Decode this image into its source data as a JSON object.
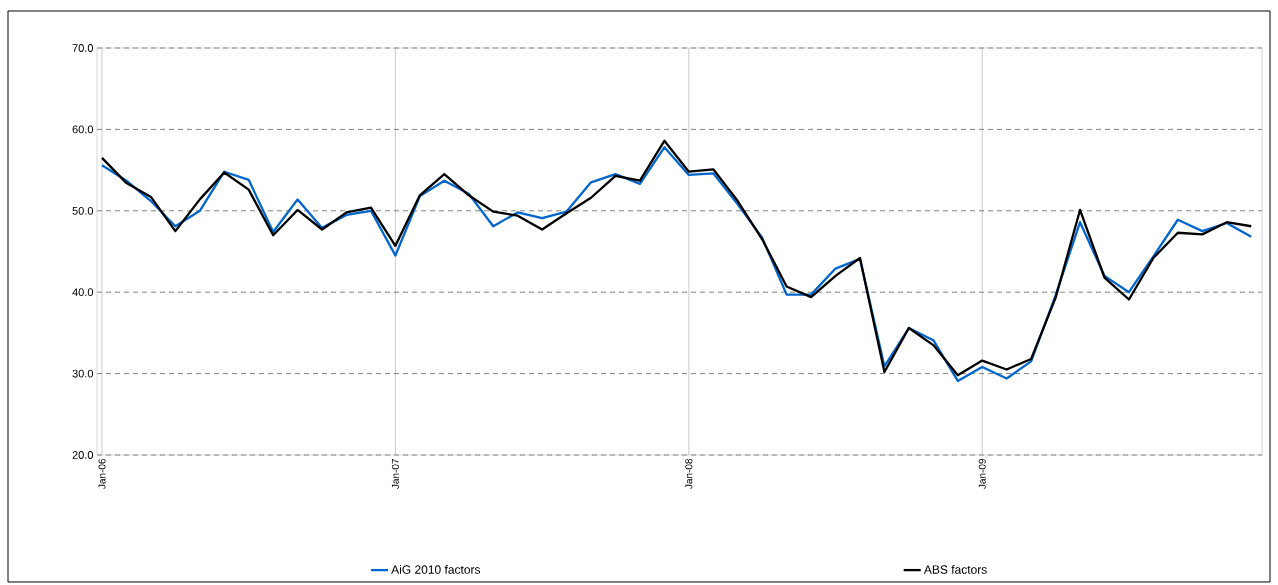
{
  "chart_data": {
    "type": "line",
    "categories": [
      "Jan-06",
      null,
      null,
      null,
      null,
      null,
      null,
      null,
      null,
      null,
      null,
      null,
      "Jan-07",
      null,
      null,
      null,
      null,
      null,
      null,
      null,
      null,
      null,
      null,
      null,
      "Jan-08",
      null,
      null,
      null,
      null,
      null,
      null,
      null,
      null,
      null,
      null,
      null,
      "Jan-09",
      null,
      null,
      null,
      null,
      null,
      null,
      null,
      null,
      null,
      null,
      null
    ],
    "series": [
      {
        "name": "AiG 2010 factors",
        "color": "#0066cc",
        "values": [
          55.6,
          53.7,
          51.2,
          48.1,
          50.0,
          54.8,
          53.8,
          47.4,
          51.4,
          47.9,
          49.5,
          50.0,
          44.5,
          51.8,
          53.7,
          52.1,
          48.1,
          49.8,
          49.1,
          49.9,
          53.5,
          54.5,
          53.3,
          57.8,
          54.4,
          54.6,
          50.8,
          46.7,
          39.7,
          39.7,
          42.9,
          44.1,
          30.9,
          35.6,
          34.1,
          29.1,
          30.8,
          29.4,
          31.5,
          39.6,
          48.6,
          42.0,
          40.0,
          44.4,
          48.9,
          47.5,
          48.5,
          46.8
        ]
      },
      {
        "name": "ABS factors",
        "color": "#000000",
        "values": [
          56.5,
          53.4,
          51.7,
          47.5,
          51.4,
          54.7,
          52.6,
          47.0,
          50.1,
          47.7,
          49.8,
          50.4,
          45.7,
          51.9,
          54.5,
          51.9,
          49.9,
          49.4,
          47.7,
          49.7,
          51.6,
          54.3,
          53.7,
          58.6,
          54.8,
          55.1,
          51.2,
          46.5,
          40.7,
          39.4,
          42.0,
          44.2,
          30.2,
          35.6,
          33.5,
          29.8,
          31.6,
          30.5,
          31.8,
          39.3,
          50.1,
          41.8,
          39.1,
          44.2,
          47.3,
          47.1,
          48.6,
          48.1
        ]
      }
    ],
    "ylim": [
      20,
      70
    ],
    "yticks": [
      {
        "value": 20,
        "label": "20.0"
      },
      {
        "value": 30,
        "label": "30.0"
      },
      {
        "value": 40,
        "label": "40.0"
      },
      {
        "value": 50,
        "label": "50.0"
      },
      {
        "value": 60,
        "label": "60.0"
      },
      {
        "value": 70,
        "label": "70.0"
      }
    ],
    "grid": true,
    "legend": "bottom"
  }
}
